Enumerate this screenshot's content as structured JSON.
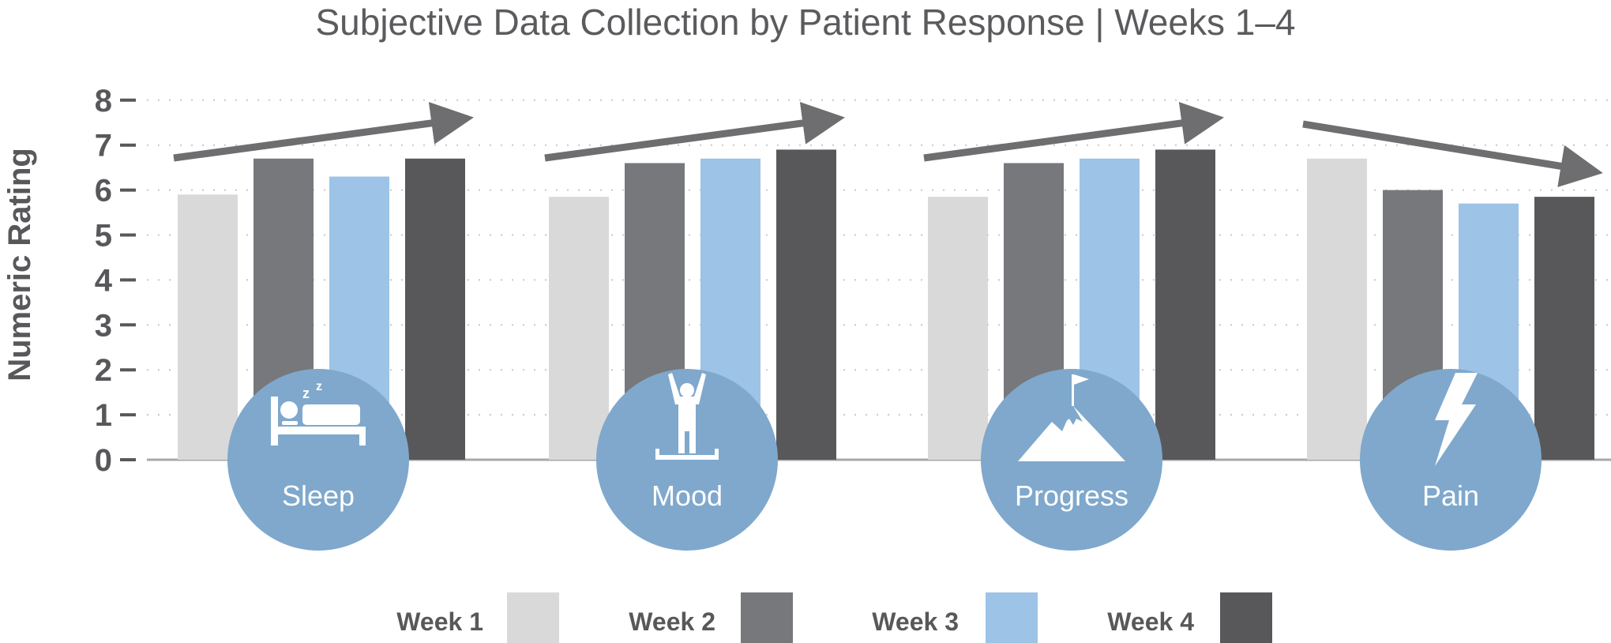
{
  "title": "Subjective Data Collection by Patient Response  |  Weeks 1–4",
  "colors": {
    "week1": "#d9d9d9",
    "week2": "#77787c",
    "week3": "#9dc3e6",
    "week4": "#58585b",
    "circle": "#7fa8cc",
    "arrow": "#6e6e71",
    "axis": "#a8a8aa",
    "grid": "#c8c8c8"
  },
  "chart_data": {
    "type": "bar",
    "title": "Subjective Data Collection by Patient Response  |  Weeks 1–4",
    "xlabel": "",
    "ylabel": "Numeric Rating",
    "ylim": [
      0,
      8
    ],
    "yticks": [
      "0",
      "1",
      "2",
      "3",
      "4",
      "5",
      "6",
      "7",
      "8"
    ],
    "grid": true,
    "legend_position": "bottom",
    "categories": [
      "Sleep",
      "Mood",
      "Progress",
      "Pain"
    ],
    "category_icons": [
      "bed-sleep-icon",
      "raised-arms-person-icon",
      "mountain-flag-icon",
      "lightning-bolt-icon"
    ],
    "trend": [
      "up",
      "up",
      "up",
      "down"
    ],
    "series": [
      {
        "name": "Week 1",
        "values": [
          5.9,
          5.85,
          5.85,
          6.7
        ]
      },
      {
        "name": "Week 2",
        "values": [
          6.7,
          6.6,
          6.6,
          6.0
        ]
      },
      {
        "name": "Week 3",
        "values": [
          6.3,
          6.7,
          6.7,
          5.7
        ]
      },
      {
        "name": "Week 4",
        "values": [
          6.7,
          6.9,
          6.9,
          5.85
        ]
      }
    ]
  }
}
